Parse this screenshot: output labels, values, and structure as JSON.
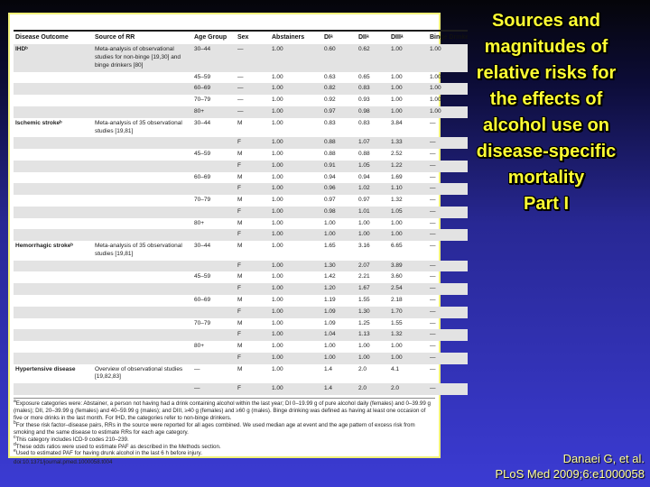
{
  "title": {
    "text": "Sources and\nmagnitudes of\nrelative risks for\nthe effects of\nalcohol use on\ndisease-specific\nmortality",
    "part": "Part I"
  },
  "citation": {
    "authors": "Danaei G, et al.",
    "reference": "PLoS Med 2009;6:e1000058"
  },
  "table": {
    "columns": [
      "Disease Outcome",
      "Source of RR",
      "Age Group",
      "Sex",
      "Abstainers",
      "DIᵃ",
      "DIIᵃ",
      "DIIIᵃ",
      "Binge Drinkers"
    ],
    "rows": [
      {
        "shaded": true,
        "cells": [
          "IHDᵇ",
          "Meta-analysis of observational studies for non-binge [19,30] and binge drinkers [80]",
          "30–44",
          "—",
          "1.00",
          "0.60",
          "0.62",
          "1.00",
          "1.00"
        ]
      },
      {
        "shaded": false,
        "cells": [
          "",
          "",
          "45–59",
          "—",
          "1.00",
          "0.63",
          "0.65",
          "1.00",
          "1.00"
        ]
      },
      {
        "shaded": true,
        "cells": [
          "",
          "",
          "60–69",
          "—",
          "1.00",
          "0.82",
          "0.83",
          "1.00",
          "1.00"
        ]
      },
      {
        "shaded": false,
        "cells": [
          "",
          "",
          "70–79",
          "—",
          "1.00",
          "0.92",
          "0.93",
          "1.00",
          "1.00"
        ]
      },
      {
        "shaded": true,
        "cells": [
          "",
          "",
          "80+",
          "—",
          "1.00",
          "0.97",
          "0.98",
          "1.00",
          "1.00"
        ]
      },
      {
        "shaded": false,
        "cells": [
          "Ischemic strokeᵇ",
          "Meta-analysis of 35 observational studies [19,81]",
          "30–44",
          "M",
          "1.00",
          "0.83",
          "0.83",
          "3.84",
          "—"
        ]
      },
      {
        "shaded": true,
        "cells": [
          "",
          "",
          "",
          "F",
          "1.00",
          "0.88",
          "1.07",
          "1.33",
          "—"
        ]
      },
      {
        "shaded": false,
        "cells": [
          "",
          "",
          "45–59",
          "M",
          "1.00",
          "0.88",
          "0.88",
          "2.52",
          "—"
        ]
      },
      {
        "shaded": true,
        "cells": [
          "",
          "",
          "",
          "F",
          "1.00",
          "0.91",
          "1.05",
          "1.22",
          "—"
        ]
      },
      {
        "shaded": false,
        "cells": [
          "",
          "",
          "60–69",
          "M",
          "1.00",
          "0.94",
          "0.94",
          "1.69",
          "—"
        ]
      },
      {
        "shaded": true,
        "cells": [
          "",
          "",
          "",
          "F",
          "1.00",
          "0.96",
          "1.02",
          "1.10",
          "—"
        ]
      },
      {
        "shaded": false,
        "cells": [
          "",
          "",
          "70–79",
          "M",
          "1.00",
          "0.97",
          "0.97",
          "1.32",
          "—"
        ]
      },
      {
        "shaded": true,
        "cells": [
          "",
          "",
          "",
          "F",
          "1.00",
          "0.98",
          "1.01",
          "1.05",
          "—"
        ]
      },
      {
        "shaded": false,
        "cells": [
          "",
          "",
          "80+",
          "M",
          "1.00",
          "1.00",
          "1.00",
          "1.00",
          "—"
        ]
      },
      {
        "shaded": true,
        "cells": [
          "",
          "",
          "",
          "F",
          "1.00",
          "1.00",
          "1.00",
          "1.00",
          "—"
        ]
      },
      {
        "shaded": false,
        "cells": [
          "Hemorrhagic strokeᵇ",
          "Meta-analysis of 35 observational studies [19,81]",
          "30–44",
          "M",
          "1.00",
          "1.65",
          "3.16",
          "6.65",
          "—"
        ]
      },
      {
        "shaded": true,
        "cells": [
          "",
          "",
          "",
          "F",
          "1.00",
          "1.30",
          "2.07",
          "3.89",
          "—"
        ]
      },
      {
        "shaded": false,
        "cells": [
          "",
          "",
          "45–59",
          "M",
          "1.00",
          "1.42",
          "2.21",
          "3.60",
          "—"
        ]
      },
      {
        "shaded": true,
        "cells": [
          "",
          "",
          "",
          "F",
          "1.00",
          "1.20",
          "1.67",
          "2.54",
          "—"
        ]
      },
      {
        "shaded": false,
        "cells": [
          "",
          "",
          "60–69",
          "M",
          "1.00",
          "1.19",
          "1.55",
          "2.18",
          "—"
        ]
      },
      {
        "shaded": true,
        "cells": [
          "",
          "",
          "",
          "F",
          "1.00",
          "1.09",
          "1.30",
          "1.70",
          "—"
        ]
      },
      {
        "shaded": false,
        "cells": [
          "",
          "",
          "70–79",
          "M",
          "1.00",
          "1.09",
          "1.25",
          "1.55",
          "—"
        ]
      },
      {
        "shaded": true,
        "cells": [
          "",
          "",
          "",
          "F",
          "1.00",
          "1.04",
          "1.13",
          "1.32",
          "—"
        ]
      },
      {
        "shaded": false,
        "cells": [
          "",
          "",
          "80+",
          "M",
          "1.00",
          "1.00",
          "1.00",
          "1.00",
          "—"
        ]
      },
      {
        "shaded": true,
        "cells": [
          "",
          "",
          "",
          "F",
          "1.00",
          "1.00",
          "1.00",
          "1.00",
          "—"
        ]
      },
      {
        "shaded": false,
        "cells": [
          "Hypertensive disease",
          "Overview of observational studies [19,82,83]",
          "—",
          "M",
          "1.00",
          "1.4",
          "2.0",
          "4.1",
          "—"
        ]
      },
      {
        "shaded": true,
        "cells": [
          "",
          "",
          "—",
          "F",
          "1.00",
          "1.4",
          "2.0",
          "2.0",
          "—"
        ]
      }
    ],
    "footnotes": [
      {
        "marker": "a",
        "text": "Exposure categories were: Abstainer, a person not having had a drink containing alcohol within the last year; DI 0–19.99 g of pure alcohol daily (females) and 0–39.99 g (males); DII, 20–39.99 g (females) and 40–59.99 g (males); and DIII, ≥40 g (females) and ≥60 g (males). Binge drinking was defined as having at least one occasion of five or more drinks in the last month. For IHD, the categories refer to non-binge drinkers."
      },
      {
        "marker": "b",
        "text": "For these risk factor–disease pairs, RRs in the source were reported for all ages combined. We used median age at event and the age pattern of excess risk from smoking and the same disease to estimate RRs for each age category."
      },
      {
        "marker": "c",
        "text": "This category includes ICD-9 codes 210–239."
      },
      {
        "marker": "d",
        "text": "These odds ratios were used to estimate PAF as described in the Methods section."
      },
      {
        "marker": "e",
        "text": "Used to estimated PAF for having drunk alcohol in the last 6 h before injury."
      }
    ],
    "doi": "doi:10.1371/journal.pmed.1000058.t004"
  },
  "colors": {
    "background_top": "#050509",
    "background_bottom": "#3b3bd3",
    "title_text": "#ffff33",
    "citation_text": "#ffff99",
    "panel_border": "#f0f078",
    "row_shade": "#e3e3e3"
  }
}
